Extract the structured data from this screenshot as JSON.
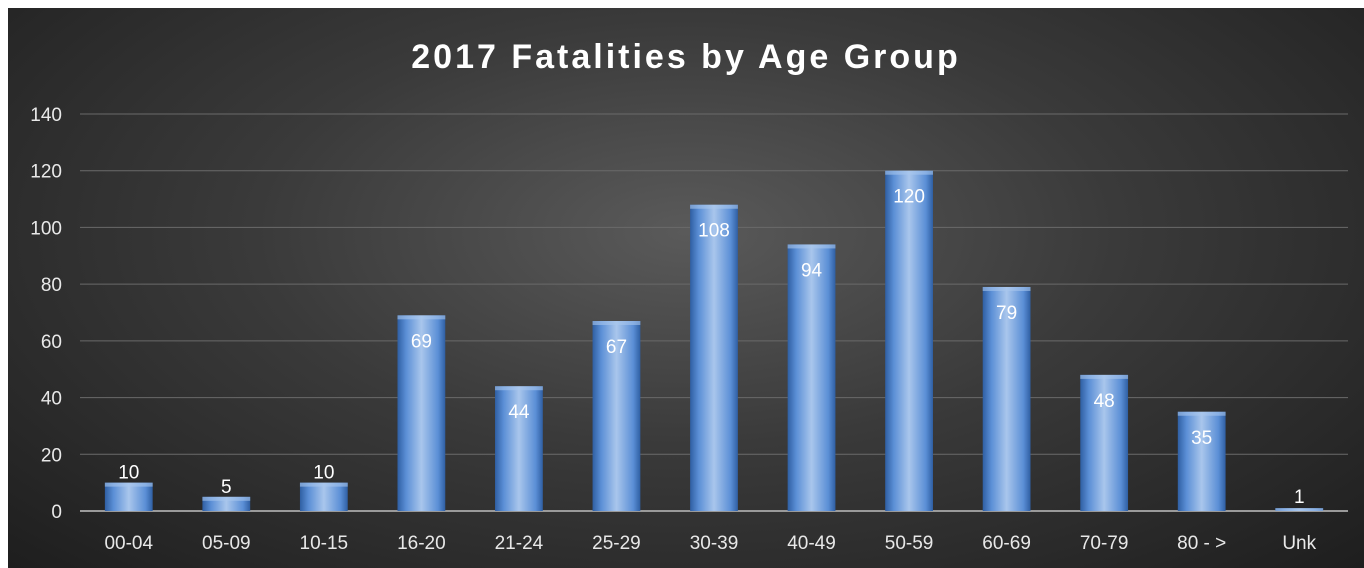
{
  "chart_data": {
    "type": "bar",
    "title": "2017 Fatalities by Age Group",
    "categories": [
      "00-04",
      "05-09",
      "10-15",
      "16-20",
      "21-24",
      "25-29",
      "30-39",
      "40-49",
      "50-59",
      "60-69",
      "70-79",
      "80 - >",
      "Unk"
    ],
    "values": [
      10,
      5,
      10,
      69,
      44,
      67,
      108,
      94,
      120,
      79,
      48,
      35,
      1
    ],
    "ylim": [
      0,
      140
    ],
    "yticks": [
      0,
      20,
      40,
      60,
      80,
      100,
      120,
      140
    ],
    "grid": true,
    "legend": "none",
    "colors": {
      "bar_light": "#a9c6ec",
      "bar_mid": "#5b8fd6",
      "bar_dark": "#2f5fa3",
      "gridline": "#6a6a6a",
      "axis": "#9a9a9a"
    }
  }
}
